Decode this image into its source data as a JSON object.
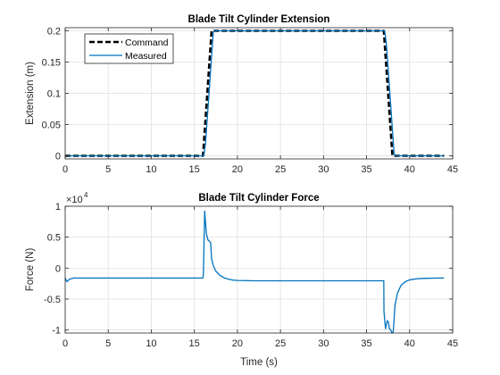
{
  "chart_data": [
    {
      "type": "line",
      "title": "Blade Tilt Cylinder Extension",
      "xlabel": "",
      "ylabel": "Extension (m)",
      "xlim": [
        0,
        45
      ],
      "ylim": [
        -0.005,
        0.205
      ],
      "xticks": [
        0,
        5,
        10,
        15,
        20,
        25,
        30,
        35,
        40,
        45
      ],
      "yticks": [
        0,
        0.05,
        0.1,
        0.15,
        0.2
      ],
      "xtick_labels": [
        "0",
        "5",
        "10",
        "15",
        "20",
        "25",
        "30",
        "35",
        "40",
        "45"
      ],
      "ytick_labels": [
        "0",
        "0.05",
        "0.1",
        "0.15",
        "0.2"
      ],
      "grid": true,
      "legend": {
        "placement": "top-left",
        "entries": [
          "Command",
          "Measured"
        ]
      },
      "series": [
        {
          "name": "Command",
          "color": "#000000",
          "style": "dashed",
          "x": [
            0,
            16,
            17,
            37,
            38,
            44
          ],
          "y": [
            0,
            0,
            0.2,
            0.2,
            0,
            0
          ]
        },
        {
          "name": "Measured",
          "color": "#0072BD",
          "style": "solid",
          "x": [
            0,
            16.1,
            16.3,
            17.2,
            17.4,
            37.1,
            37.3,
            38.2,
            38.4,
            44
          ],
          "y": [
            0,
            0,
            0.02,
            0.198,
            0.2,
            0.2,
            0.18,
            0.003,
            0,
            0
          ]
        }
      ]
    },
    {
      "type": "line",
      "title": "Blade Tilt Cylinder Force",
      "xlabel": "Time (s)",
      "ylabel": "Force (N)",
      "y_exponent_base": "×10",
      "y_exponent_power": "4",
      "xlim": [
        0,
        45
      ],
      "ylim": [
        -10500,
        10000
      ],
      "xticks": [
        0,
        5,
        10,
        15,
        20,
        25,
        30,
        35,
        40,
        45
      ],
      "yticks": [
        -10000,
        -5000,
        0,
        5000,
        10000
      ],
      "xtick_labels": [
        "0",
        "5",
        "10",
        "15",
        "20",
        "25",
        "30",
        "35",
        "40",
        "45"
      ],
      "ytick_labels": [
        "-1",
        "-0.5",
        "0",
        "0.5",
        "1"
      ],
      "grid": true,
      "series": [
        {
          "color": "#0072BD",
          "style": "solid",
          "x": [
            0,
            0.2,
            0.5,
            1.0,
            2,
            5,
            10,
            15,
            16.0,
            16.05,
            16.2,
            16.4,
            16.6,
            16.8,
            16.9,
            17.0,
            17.2,
            17.5,
            18,
            18.5,
            19,
            19.5,
            20,
            22,
            25,
            30,
            36,
            37.0,
            37.02,
            37.2,
            37.4,
            37.55,
            37.65,
            37.8,
            37.95,
            38.1,
            38.3,
            38.6,
            39,
            39.5,
            40,
            41,
            42,
            43,
            44
          ],
          "y": [
            -1600,
            -2200,
            -1800,
            -1600,
            -1600,
            -1600,
            -1600,
            -1600,
            -1600,
            -1000,
            9200,
            5500,
            4500,
            4300,
            4000,
            1500,
            400,
            -500,
            -1200,
            -1600,
            -1800,
            -1950,
            -2000,
            -2050,
            -2050,
            -2050,
            -2050,
            -2050,
            -7000,
            -9800,
            -8500,
            -8800,
            -9800,
            -10000,
            -10500,
            -10300,
            -6000,
            -4000,
            -2800,
            -2200,
            -1900,
            -1700,
            -1650,
            -1620,
            -1600
          ]
        }
      ]
    }
  ]
}
